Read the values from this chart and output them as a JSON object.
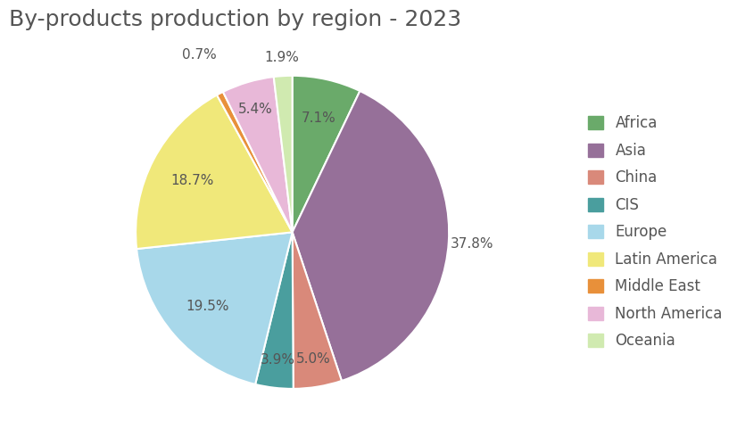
{
  "title": "By-products production by region - 2023",
  "regions": [
    "Africa",
    "Asia",
    "China",
    "CIS",
    "Europe",
    "Latin America",
    "Middle East",
    "North America",
    "Oceania"
  ],
  "values": [
    7.1,
    37.8,
    5.0,
    3.9,
    19.5,
    18.7,
    0.7,
    5.4,
    1.9
  ],
  "colors": [
    "#6aaa6a",
    "#967099",
    "#d9897a",
    "#4a9e9e",
    "#a8d8ea",
    "#f0e87a",
    "#e8903a",
    "#e8b8d8",
    "#d0eab0"
  ],
  "title_fontsize": 18,
  "label_fontsize": 11,
  "legend_fontsize": 12,
  "background_color": "#ffffff",
  "startangle": 90
}
